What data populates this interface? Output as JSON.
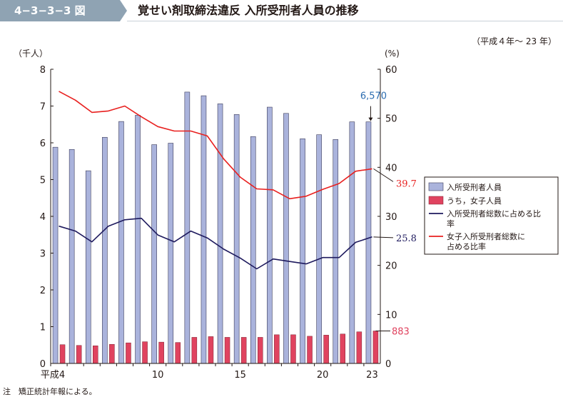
{
  "figure": {
    "number": "4−3−3−3 図",
    "title": "覚せい剤取締法違反 入所受刑者人員の推移",
    "period": "（平成４年〜 23 年）",
    "note": "注　矯正統計年報による。"
  },
  "colors": {
    "header_badge": "#8fa3b3",
    "bar_total": "#aab3dc",
    "bar_female": "#e0435f",
    "line_total_share": "#1e1a5e",
    "line_female_share": "#e8201f",
    "label_blue": "#2b6cb0",
    "label_red": "#e8201f"
  },
  "chart_data": {
    "type": "bar",
    "x": [
      4,
      5,
      6,
      7,
      8,
      9,
      10,
      11,
      12,
      13,
      14,
      15,
      16,
      17,
      18,
      19,
      20,
      21,
      22,
      23
    ],
    "x_tick_labels": [
      {
        "x": 4,
        "label": "平成4"
      },
      {
        "x": 10,
        "label": "10"
      },
      {
        "x": 15,
        "label": "15"
      },
      {
        "x": 20,
        "label": "20"
      },
      {
        "x": 23,
        "label": "23"
      }
    ],
    "y_left": {
      "unit_label": "（千人）",
      "ylim": [
        0,
        8
      ],
      "ticks": [
        "0",
        "1",
        "2",
        "3",
        "4",
        "5",
        "6",
        "7",
        "8"
      ]
    },
    "y_right": {
      "unit_label": "(%)",
      "ylim": [
        0,
        60
      ],
      "ticks": [
        "0",
        "10",
        "20",
        "30",
        "40",
        "50",
        "60"
      ]
    },
    "series": [
      {
        "name": "入所受刑者人員",
        "kind": "bar",
        "axis": "left",
        "values": [
          5.88,
          5.82,
          5.24,
          6.15,
          6.58,
          6.75,
          5.95,
          5.99,
          7.38,
          7.28,
          7.06,
          6.77,
          6.17,
          6.97,
          6.8,
          6.11,
          6.22,
          6.09,
          6.57,
          6.57
        ]
      },
      {
        "name": "うち，女子人員",
        "kind": "bar",
        "axis": "left",
        "values": [
          0.51,
          0.49,
          0.48,
          0.52,
          0.56,
          0.59,
          0.58,
          0.57,
          0.71,
          0.73,
          0.71,
          0.71,
          0.71,
          0.78,
          0.78,
          0.74,
          0.77,
          0.8,
          0.86,
          0.883
        ]
      },
      {
        "name": "入所受刑者総数に占める比率",
        "kind": "line",
        "axis": "right",
        "values": [
          28.0,
          27.0,
          24.8,
          28.0,
          29.3,
          29.6,
          26.2,
          24.8,
          27.0,
          25.6,
          23.3,
          21.5,
          19.3,
          21.3,
          20.8,
          20.3,
          21.6,
          21.6,
          24.7,
          25.8
        ]
      },
      {
        "name": "女子入所受刑者総数に占める比率",
        "kind": "line",
        "axis": "right",
        "values": [
          55.5,
          53.7,
          51.2,
          51.5,
          52.5,
          50.3,
          48.3,
          47.4,
          47.4,
          46.4,
          41.7,
          38.0,
          35.6,
          35.4,
          33.6,
          34.1,
          35.5,
          36.7,
          39.2,
          39.7
        ]
      }
    ],
    "annotations": [
      {
        "label": "6,570",
        "series": 0,
        "x": 23
      },
      {
        "label": "883",
        "series": 1,
        "x": 23
      },
      {
        "label": "25.8",
        "series": 2,
        "x": 23
      },
      {
        "label": "39.7",
        "series": 3,
        "x": 23
      }
    ],
    "legend": {
      "placement": "right",
      "entries": [
        "入所受刑者人員",
        "うち，女子人員",
        "入所受刑者総数に占める比率",
        "女子入所受刑者総数に占める比率"
      ]
    },
    "grid": false
  }
}
